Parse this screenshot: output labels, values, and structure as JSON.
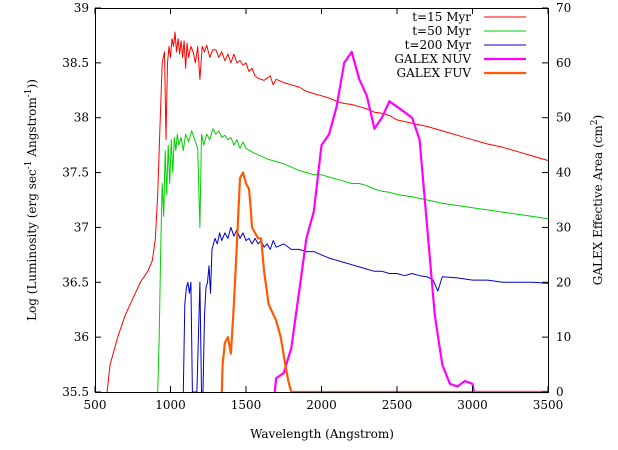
{
  "chart_data": {
    "type": "line",
    "xlabel": "Wavelength (Angstrom)",
    "ylabel": "Log (Luminosity (erg sec⁻¹ Angstrom⁻¹))",
    "y2label": "GALEX Effective Area (cm²)",
    "xlim": [
      500,
      3500
    ],
    "ylim": [
      35.5,
      39
    ],
    "y2lim": [
      0,
      70
    ],
    "xticks": [
      "500",
      "1000",
      "1500",
      "2000",
      "2500",
      "3000",
      "3500"
    ],
    "yticks": [
      "35.5",
      "36",
      "36.5",
      "37",
      "37.5",
      "38",
      "38.5",
      "39"
    ],
    "y2ticks": [
      "0",
      "10",
      "20",
      "30",
      "40",
      "50",
      "60",
      "70"
    ],
    "legend_position": "top-right",
    "grid": false,
    "series": [
      {
        "name": "t=15 Myr",
        "axis": "left",
        "color": "#ff0000",
        "points": [
          [
            580,
            35.5
          ],
          [
            600,
            35.75
          ],
          [
            650,
            36.0
          ],
          [
            700,
            36.2
          ],
          [
            750,
            36.35
          ],
          [
            800,
            36.5
          ],
          [
            850,
            36.6
          ],
          [
            880,
            36.7
          ],
          [
            900,
            36.9
          ],
          [
            915,
            37.3
          ],
          [
            930,
            37.9
          ],
          [
            945,
            38.5
          ],
          [
            960,
            38.6
          ],
          [
            970,
            37.8
          ],
          [
            980,
            38.5
          ],
          [
            990,
            38.65
          ],
          [
            1000,
            38.55
          ],
          [
            1010,
            38.72
          ],
          [
            1020,
            38.65
          ],
          [
            1030,
            38.78
          ],
          [
            1040,
            38.6
          ],
          [
            1050,
            38.72
          ],
          [
            1060,
            38.58
          ],
          [
            1070,
            38.7
          ],
          [
            1080,
            38.55
          ],
          [
            1090,
            38.7
          ],
          [
            1100,
            38.45
          ],
          [
            1110,
            38.68
          ],
          [
            1120,
            38.55
          ],
          [
            1135,
            38.65
          ],
          [
            1150,
            38.6
          ],
          [
            1165,
            38.5
          ],
          [
            1180,
            38.65
          ],
          [
            1195,
            38.35
          ],
          [
            1210,
            38.65
          ],
          [
            1225,
            38.6
          ],
          [
            1240,
            38.66
          ],
          [
            1260,
            38.55
          ],
          [
            1280,
            38.62
          ],
          [
            1300,
            38.62
          ],
          [
            1320,
            38.55
          ],
          [
            1340,
            38.6
          ],
          [
            1360,
            38.52
          ],
          [
            1380,
            38.58
          ],
          [
            1400,
            38.5
          ],
          [
            1420,
            38.58
          ],
          [
            1440,
            38.5
          ],
          [
            1460,
            38.52
          ],
          [
            1480,
            38.48
          ],
          [
            1500,
            38.5
          ],
          [
            1520,
            38.42
          ],
          [
            1540,
            38.45
          ],
          [
            1560,
            38.38
          ],
          [
            1580,
            38.36
          ],
          [
            1600,
            38.35
          ],
          [
            1620,
            38.34
          ],
          [
            1640,
            38.36
          ],
          [
            1660,
            38.38
          ],
          [
            1680,
            38.3
          ],
          [
            1700,
            38.35
          ],
          [
            1750,
            38.32
          ],
          [
            1800,
            38.3
          ],
          [
            1850,
            38.28
          ],
          [
            1900,
            38.24
          ],
          [
            1950,
            38.22
          ],
          [
            2000,
            38.2
          ],
          [
            2050,
            38.18
          ],
          [
            2100,
            38.15
          ],
          [
            2150,
            38.13
          ],
          [
            2200,
            38.12
          ],
          [
            2250,
            38.1
          ],
          [
            2300,
            38.08
          ],
          [
            2350,
            38.05
          ],
          [
            2400,
            38.04
          ],
          [
            2450,
            38.02
          ],
          [
            2500,
            37.98
          ],
          [
            2600,
            37.95
          ],
          [
            2700,
            37.92
          ],
          [
            2800,
            37.88
          ],
          [
            2900,
            37.84
          ],
          [
            3000,
            37.8
          ],
          [
            3100,
            37.76
          ],
          [
            3200,
            37.73
          ],
          [
            3300,
            37.69
          ],
          [
            3400,
            37.65
          ],
          [
            3500,
            37.61
          ]
        ]
      },
      {
        "name": "t=50 Myr",
        "axis": "left",
        "color": "#00d000",
        "points": [
          [
            915,
            35.5
          ],
          [
            925,
            36.0
          ],
          [
            935,
            36.8
          ],
          [
            945,
            37.4
          ],
          [
            955,
            37.1
          ],
          [
            965,
            37.7
          ],
          [
            975,
            37.3
          ],
          [
            985,
            37.75
          ],
          [
            995,
            37.4
          ],
          [
            1005,
            37.8
          ],
          [
            1015,
            37.5
          ],
          [
            1025,
            37.82
          ],
          [
            1035,
            37.7
          ],
          [
            1045,
            37.85
          ],
          [
            1055,
            37.75
          ],
          [
            1070,
            37.82
          ],
          [
            1085,
            37.7
          ],
          [
            1100,
            37.85
          ],
          [
            1120,
            37.78
          ],
          [
            1140,
            37.88
          ],
          [
            1160,
            37.8
          ],
          [
            1180,
            37.72
          ],
          [
            1195,
            37.0
          ],
          [
            1205,
            37.85
          ],
          [
            1220,
            37.75
          ],
          [
            1240,
            37.85
          ],
          [
            1260,
            37.8
          ],
          [
            1280,
            37.9
          ],
          [
            1300,
            37.85
          ],
          [
            1320,
            37.88
          ],
          [
            1340,
            37.82
          ],
          [
            1360,
            37.84
          ],
          [
            1380,
            37.8
          ],
          [
            1400,
            37.82
          ],
          [
            1420,
            37.75
          ],
          [
            1440,
            37.8
          ],
          [
            1460,
            37.72
          ],
          [
            1480,
            37.78
          ],
          [
            1500,
            37.72
          ],
          [
            1550,
            37.68
          ],
          [
            1600,
            37.65
          ],
          [
            1650,
            37.62
          ],
          [
            1700,
            37.6
          ],
          [
            1750,
            37.58
          ],
          [
            1800,
            37.55
          ],
          [
            1850,
            37.52
          ],
          [
            1900,
            37.5
          ],
          [
            1950,
            37.48
          ],
          [
            2000,
            37.48
          ],
          [
            2050,
            37.46
          ],
          [
            2100,
            37.44
          ],
          [
            2150,
            37.42
          ],
          [
            2200,
            37.4
          ],
          [
            2250,
            37.4
          ],
          [
            2300,
            37.38
          ],
          [
            2350,
            37.35
          ],
          [
            2400,
            37.33
          ],
          [
            2450,
            37.32
          ],
          [
            2500,
            37.3
          ],
          [
            2600,
            37.28
          ],
          [
            2700,
            37.25
          ],
          [
            2800,
            37.22
          ],
          [
            2900,
            37.2
          ],
          [
            3000,
            37.18
          ],
          [
            3100,
            37.16
          ],
          [
            3200,
            37.14
          ],
          [
            3300,
            37.12
          ],
          [
            3400,
            37.1
          ],
          [
            3500,
            37.08
          ]
        ]
      },
      {
        "name": "t=200 Myr",
        "axis": "left",
        "color": "#0000cc",
        "points": [
          [
            1085,
            35.5
          ],
          [
            1095,
            36.3
          ],
          [
            1105,
            36.45
          ],
          [
            1115,
            36.5
          ],
          [
            1125,
            36.4
          ],
          [
            1135,
            36.5
          ],
          [
            1145,
            35.5
          ],
          [
            1155,
            35.5
          ],
          [
            1175,
            35.5
          ],
          [
            1185,
            36.0
          ],
          [
            1195,
            36.5
          ],
          [
            1205,
            35.5
          ],
          [
            1215,
            35.5
          ],
          [
            1225,
            36.2
          ],
          [
            1235,
            36.45
          ],
          [
            1245,
            36.5
          ],
          [
            1255,
            36.65
          ],
          [
            1265,
            36.4
          ],
          [
            1275,
            36.8
          ],
          [
            1285,
            36.85
          ],
          [
            1295,
            36.9
          ],
          [
            1310,
            36.85
          ],
          [
            1325,
            36.95
          ],
          [
            1340,
            36.88
          ],
          [
            1360,
            36.95
          ],
          [
            1380,
            36.9
          ],
          [
            1400,
            37.0
          ],
          [
            1420,
            36.92
          ],
          [
            1440,
            36.98
          ],
          [
            1460,
            36.9
          ],
          [
            1480,
            36.95
          ],
          [
            1500,
            36.88
          ],
          [
            1520,
            36.9
          ],
          [
            1540,
            36.85
          ],
          [
            1560,
            36.9
          ],
          [
            1580,
            36.85
          ],
          [
            1600,
            36.88
          ],
          [
            1620,
            36.82
          ],
          [
            1640,
            36.85
          ],
          [
            1660,
            36.8
          ],
          [
            1680,
            36.88
          ],
          [
            1700,
            36.82
          ],
          [
            1750,
            36.85
          ],
          [
            1800,
            36.8
          ],
          [
            1850,
            36.8
          ],
          [
            1900,
            36.78
          ],
          [
            1950,
            36.78
          ],
          [
            2000,
            36.75
          ],
          [
            2050,
            36.72
          ],
          [
            2100,
            36.7
          ],
          [
            2150,
            36.68
          ],
          [
            2200,
            36.66
          ],
          [
            2250,
            36.64
          ],
          [
            2300,
            36.62
          ],
          [
            2350,
            36.6
          ],
          [
            2400,
            36.6
          ],
          [
            2450,
            36.58
          ],
          [
            2500,
            36.58
          ],
          [
            2550,
            36.56
          ],
          [
            2600,
            36.58
          ],
          [
            2650,
            36.56
          ],
          [
            2700,
            36.55
          ],
          [
            2740,
            36.52
          ],
          [
            2770,
            36.42
          ],
          [
            2800,
            36.55
          ],
          [
            2900,
            36.54
          ],
          [
            3000,
            36.52
          ],
          [
            3100,
            36.52
          ],
          [
            3200,
            36.5
          ],
          [
            3300,
            36.5
          ],
          [
            3400,
            36.5
          ],
          [
            3500,
            36.49
          ]
        ]
      },
      {
        "name": "GALEX NUV",
        "axis": "right",
        "color": "#ff00ff",
        "points": [
          [
            1690,
            0
          ],
          [
            1700,
            2.5
          ],
          [
            1750,
            3.5
          ],
          [
            1800,
            8
          ],
          [
            1850,
            18
          ],
          [
            1900,
            28
          ],
          [
            1950,
            33
          ],
          [
            2000,
            45
          ],
          [
            2050,
            47
          ],
          [
            2100,
            52
          ],
          [
            2150,
            60
          ],
          [
            2200,
            62
          ],
          [
            2250,
            57
          ],
          [
            2300,
            54
          ],
          [
            2350,
            48
          ],
          [
            2400,
            50
          ],
          [
            2450,
            53
          ],
          [
            2500,
            52
          ],
          [
            2550,
            51
          ],
          [
            2600,
            50
          ],
          [
            2650,
            46
          ],
          [
            2700,
            30
          ],
          [
            2750,
            14
          ],
          [
            2800,
            5
          ],
          [
            2850,
            1.5
          ],
          [
            2900,
            1
          ],
          [
            2950,
            2
          ],
          [
            3000,
            1.5
          ],
          [
            3010,
            0
          ],
          [
            3500,
            0
          ]
        ]
      },
      {
        "name": "GALEX FUV",
        "axis": "right",
        "color": "#ff5a00",
        "points": [
          [
            1340,
            0
          ],
          [
            1345,
            5
          ],
          [
            1360,
            9
          ],
          [
            1380,
            10
          ],
          [
            1400,
            7
          ],
          [
            1420,
            16
          ],
          [
            1440,
            27
          ],
          [
            1460,
            39
          ],
          [
            1480,
            40
          ],
          [
            1500,
            38
          ],
          [
            1520,
            37
          ],
          [
            1530,
            34
          ],
          [
            1540,
            30
          ],
          [
            1580,
            28
          ],
          [
            1600,
            28
          ],
          [
            1620,
            22
          ],
          [
            1650,
            16
          ],
          [
            1700,
            13
          ],
          [
            1730,
            10
          ],
          [
            1760,
            5
          ],
          [
            1780,
            2
          ],
          [
            1800,
            0
          ],
          [
            3500,
            0
          ]
        ]
      }
    ]
  }
}
